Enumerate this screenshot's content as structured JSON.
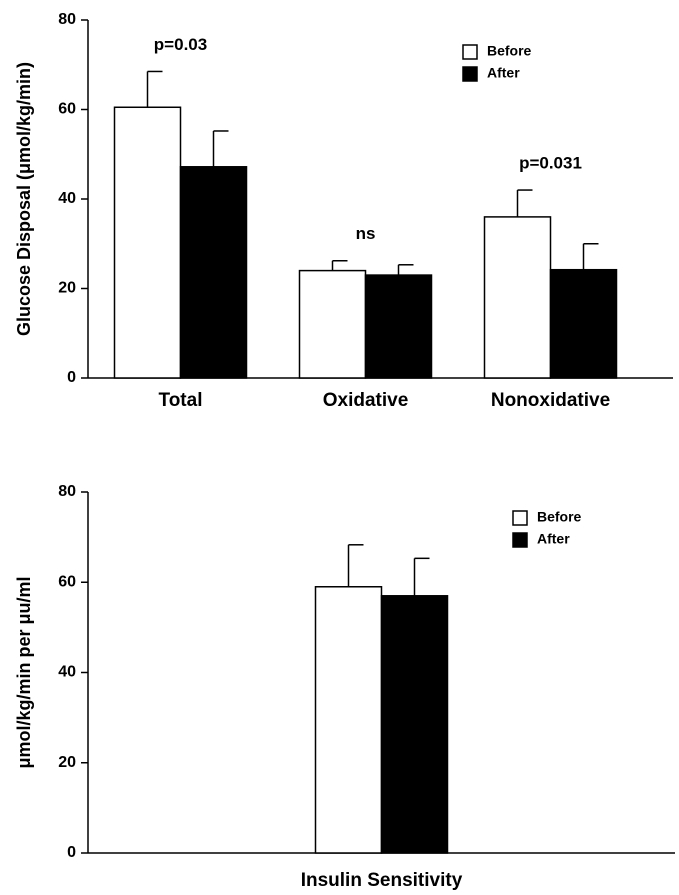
{
  "chart_data": [
    {
      "type": "bar",
      "y_label": "Glucose Disposal (μmol/kg/min)",
      "categories": [
        "Total",
        "Oxidative",
        "Nonoxidative"
      ],
      "annotations": [
        "p=0.03",
        "ns",
        "p=0.031"
      ],
      "series": [
        {
          "name": "Before",
          "color": "#ffffff",
          "values": [
            60.5,
            24,
            36
          ],
          "errors": [
            8,
            2.2,
            6
          ]
        },
        {
          "name": "After",
          "color": "#000000",
          "values": [
            47.2,
            23,
            24.2
          ],
          "errors": [
            8,
            2.3,
            5.8
          ]
        }
      ],
      "ylim": [
        0,
        80
      ],
      "yticks": [
        0,
        20,
        40,
        60,
        80
      ]
    },
    {
      "type": "bar",
      "y_label": "μmol/kg/min per μu/ml",
      "categories": [
        "Insulin Sensitivity"
      ],
      "series": [
        {
          "name": "Before",
          "color": "#ffffff",
          "values": [
            59
          ],
          "errors": [
            9.3
          ]
        },
        {
          "name": "After",
          "color": "#000000",
          "values": [
            57
          ],
          "errors": [
            8.3
          ]
        }
      ],
      "ylim": [
        0,
        80
      ],
      "yticks": [
        0,
        20,
        40,
        60,
        80
      ]
    }
  ]
}
